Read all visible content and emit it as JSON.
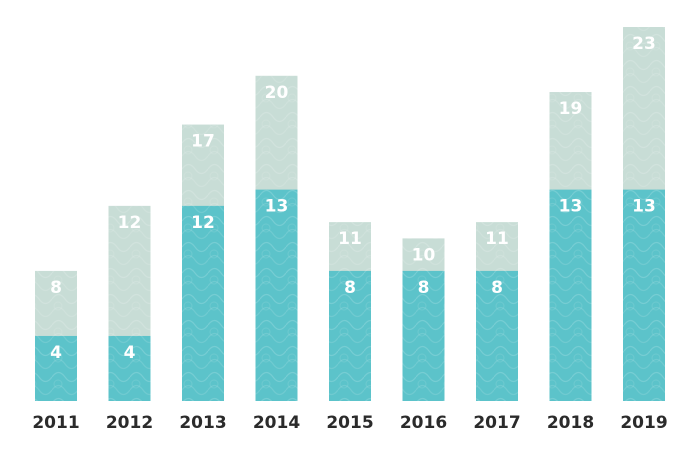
{
  "chart_data": {
    "type": "bar",
    "stacking": "overlay",
    "title": "",
    "xlabel": "",
    "ylabel": "",
    "categories": [
      "2011",
      "2012",
      "2013",
      "2014",
      "2015",
      "2016",
      "2017",
      "2018",
      "2019"
    ],
    "series": [
      {
        "values": [
          4,
          4,
          12,
          13,
          8,
          8,
          8,
          13,
          13
        ],
        "color": "#5cc3ca"
      },
      {
        "values": [
          8,
          12,
          17,
          20,
          11,
          10,
          11,
          19,
          23
        ],
        "color": "#c8ddd6"
      }
    ],
    "ylim": [
      0,
      23
    ],
    "grid": false,
    "legend": "none",
    "data_labels": true
  }
}
